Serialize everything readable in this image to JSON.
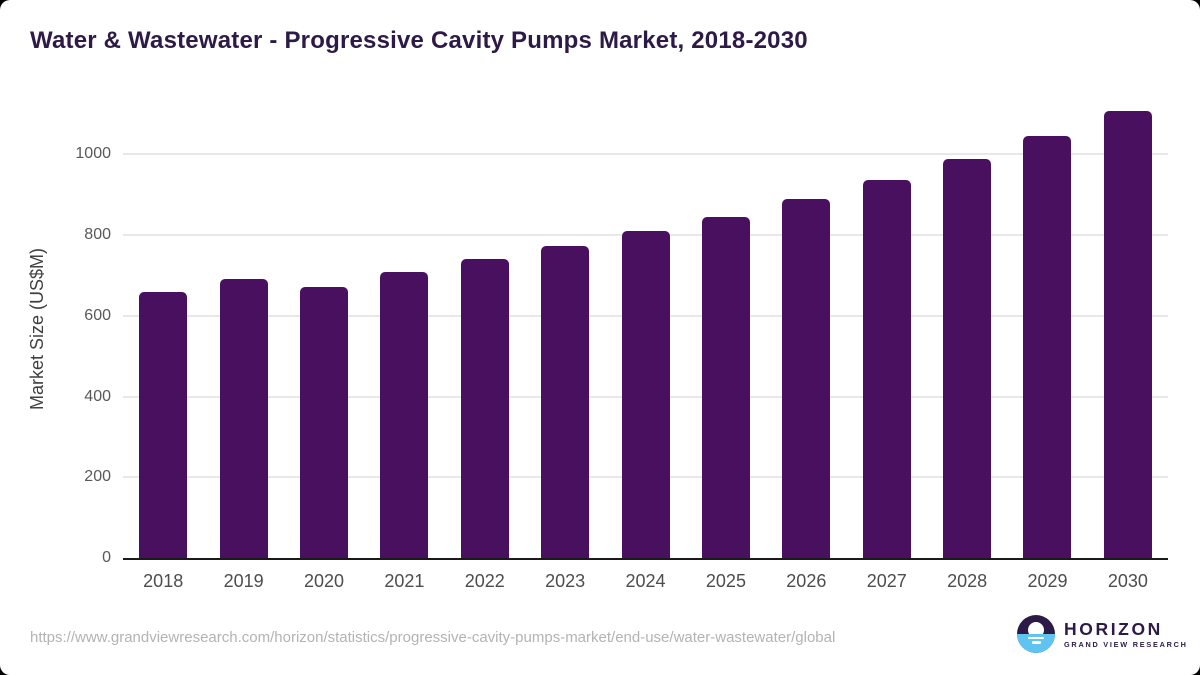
{
  "page": {
    "outer_background": "#000000",
    "card_background": "#ffffff"
  },
  "header": {
    "title": "Water & Wastewater - Progressive Cavity Pumps Market, 2018-2030"
  },
  "chart_data": {
    "type": "bar",
    "title": "Water & Wastewater - Progressive Cavity Pumps Market, 2018-2030",
    "categories": [
      "2018",
      "2019",
      "2020",
      "2021",
      "2022",
      "2023",
      "2024",
      "2025",
      "2026",
      "2027",
      "2028",
      "2029",
      "2030"
    ],
    "values": [
      658,
      692,
      672,
      708,
      742,
      773,
      811,
      845,
      890,
      936,
      989,
      1046,
      1107
    ],
    "xlabel": "",
    "ylabel": "Market Size (US$M)",
    "yticks": [
      0,
      200,
      400,
      600,
      800,
      1000
    ],
    "ylim": [
      0,
      1135
    ],
    "grid": "horizontal",
    "legend": "none",
    "bar_color": "#48105f"
  },
  "colors": {
    "bar": "#48105f",
    "gridline": "#e8e8e8",
    "axis_line": "#1a1a1a",
    "tick_label": "#595959",
    "x_label": "#4d4d4d",
    "y_axis_title": "#404040",
    "title": "#2e1a47",
    "url_text": "#b3b3b3",
    "logo_purple": "#2c1b47",
    "logo_blue": "#5fc4f1"
  },
  "footer": {
    "source_url": "https://www.grandviewresearch.com/horizon/statistics/progressive-cavity-pumps-market/end-use/water-wastewater/global",
    "logo": {
      "brand": "HORIZON",
      "brand_subtitle": "GRAND VIEW RESEARCH"
    }
  }
}
